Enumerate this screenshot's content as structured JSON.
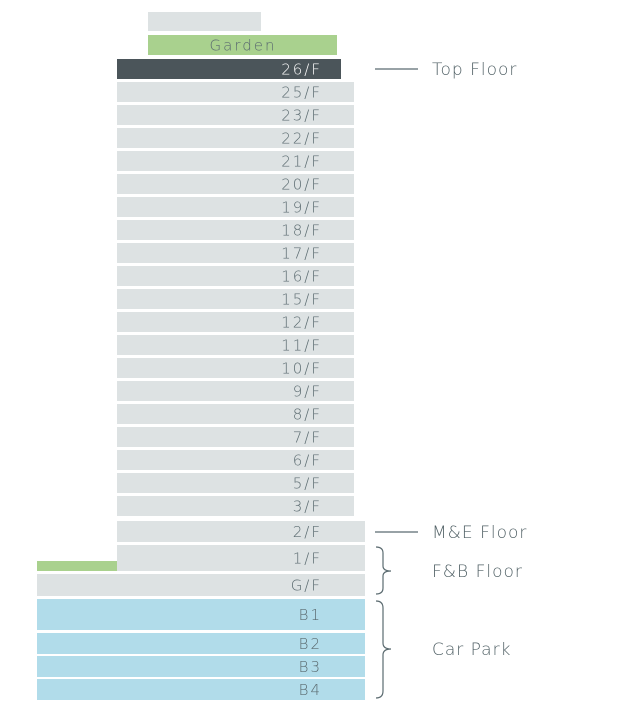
{
  "roof_label": "Garden",
  "floors": [
    "26/F",
    "25/F",
    "23/F",
    "22/F",
    "21/F",
    "20/F",
    "19/F",
    "18/F",
    "17/F",
    "16/F",
    "15/F",
    "12/F",
    "11/F",
    "10/F",
    "9/F",
    "8/F",
    "7/F",
    "6/F",
    "5/F",
    "3/F",
    "2/F",
    "1/F",
    "G/F",
    "B1",
    "B2",
    "B3",
    "B4"
  ],
  "annotations": [
    "Top Floor",
    "M&E Floor",
    "F&B Floor",
    "Car Park"
  ]
}
